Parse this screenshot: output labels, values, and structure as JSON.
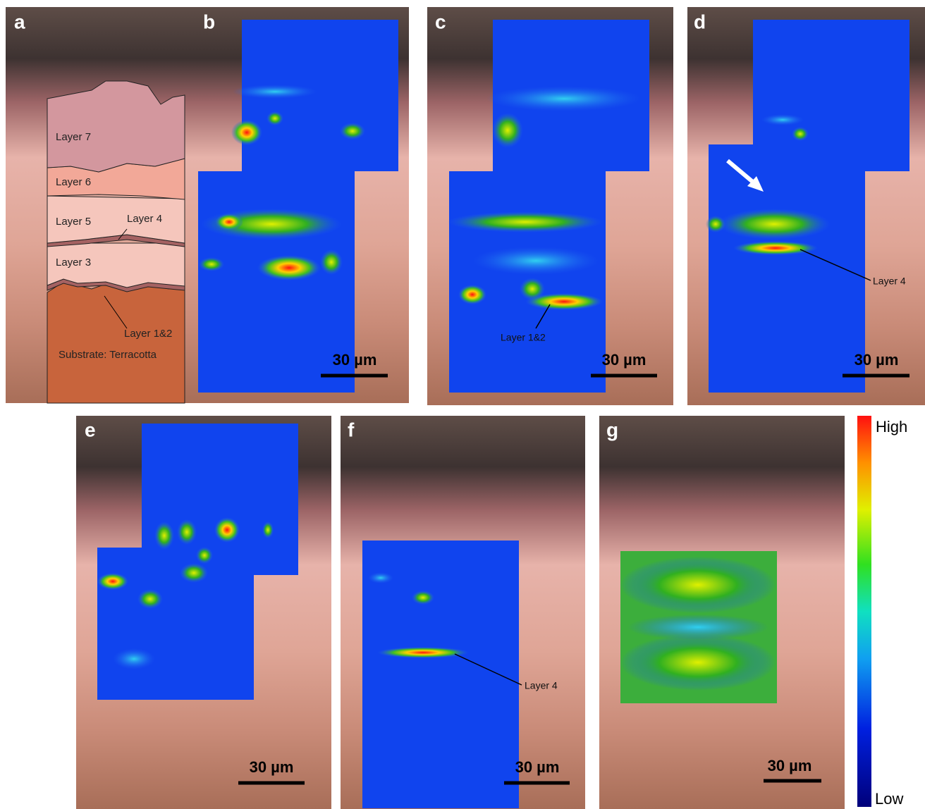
{
  "panels": [
    {
      "label": "a",
      "layers": [
        "Layer 7",
        "Layer 6",
        "Layer 5",
        "Layer 4",
        "Layer 3",
        "Layer 1&2",
        "Substrate: Terracotta"
      ]
    },
    {
      "label": "b",
      "scale_bar": "30 µm"
    },
    {
      "label": "c",
      "scale_bar": "30 µm",
      "annotation": "Layer 1&2"
    },
    {
      "label": "d",
      "scale_bar": "30 µm",
      "annotation": "Layer 4"
    },
    {
      "label": "e",
      "scale_bar": "30 µm"
    },
    {
      "label": "f",
      "scale_bar": "30 µm",
      "annotation": "Layer 4"
    },
    {
      "label": "g",
      "scale_bar": "30 µm"
    }
  ],
  "colorbar": {
    "high": "High",
    "low": "Low"
  }
}
